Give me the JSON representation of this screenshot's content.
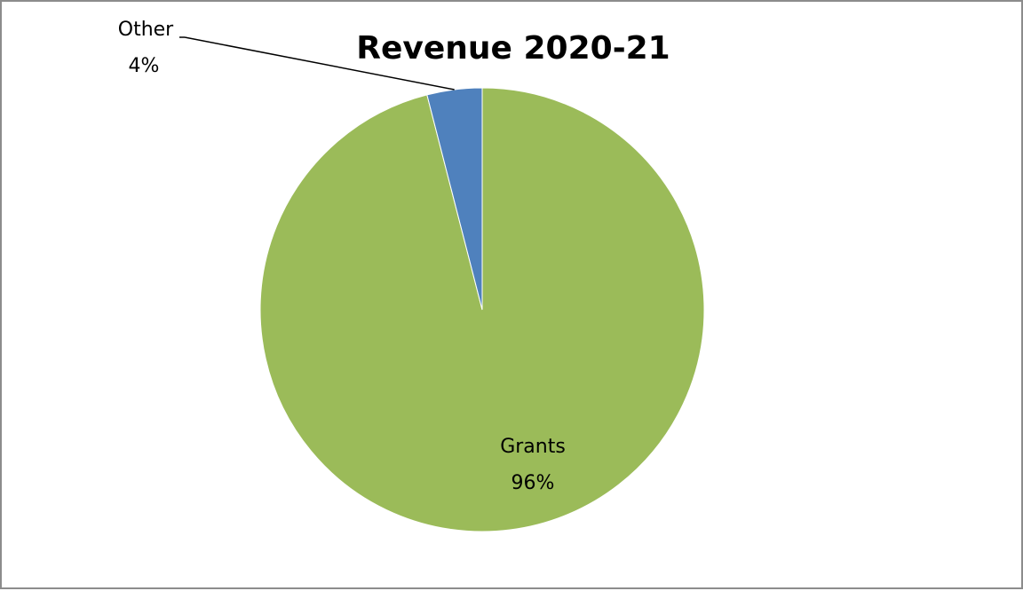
{
  "chart_data": {
    "type": "pie",
    "title": "Revenue 2020-21",
    "slices": [
      {
        "label": "Grants",
        "value": 96,
        "value_label": "96%",
        "color": "#9bbb59"
      },
      {
        "label": "Other",
        "value": 4,
        "value_label": "4%",
        "color": "#4f81bd"
      }
    ],
    "start_angle": "12 o'clock",
    "direction": "clockwise",
    "legend": "none",
    "data_labels": "category name and percentage"
  }
}
